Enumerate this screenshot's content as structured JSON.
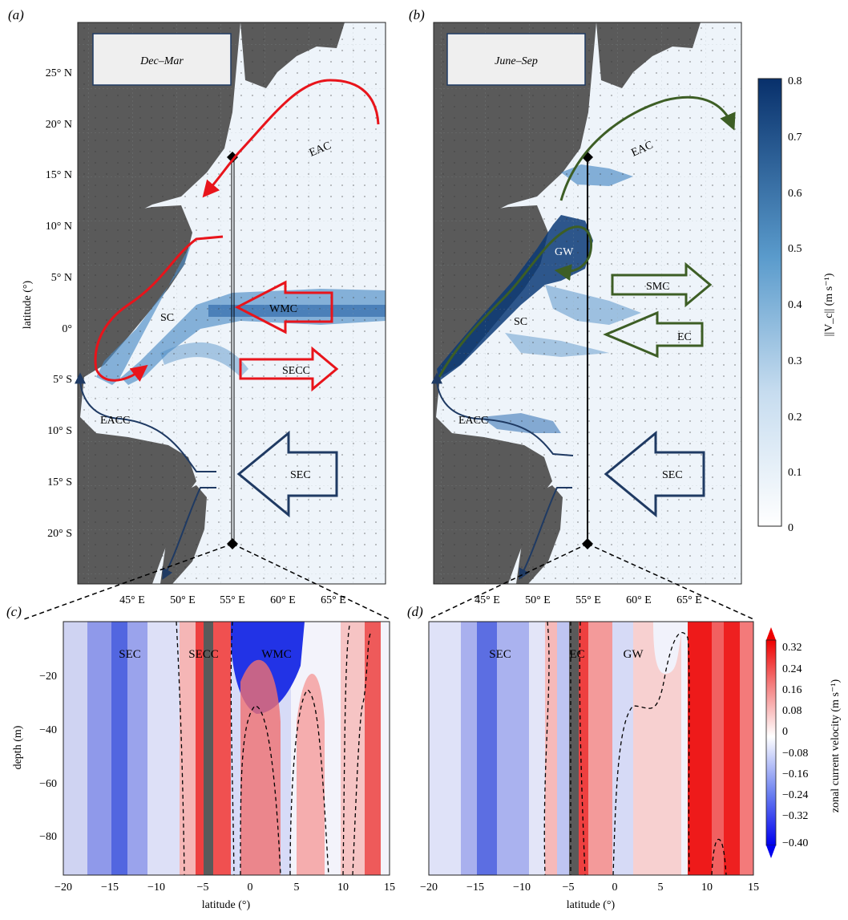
{
  "panels": {
    "a": {
      "letter": "(a)",
      "season": "Dec–Mar"
    },
    "b": {
      "letter": "(b)",
      "season": "June–Sep"
    },
    "c": {
      "letter": "(c)"
    },
    "d": {
      "letter": "(d)"
    }
  },
  "map_axes": {
    "ylabel": "latitude (°)",
    "lat_ticks": [
      "25° N",
      "20° N",
      "15° N",
      "10° N",
      "5° N",
      "0°",
      "5° S",
      "10° S",
      "15° S",
      "20° S"
    ],
    "lon_ticks": [
      "45° E",
      "50° E",
      "55° E",
      "60° E",
      "65° E"
    ]
  },
  "currents_a": {
    "eac": "EAC",
    "sc": "SC",
    "wmc": "WMC",
    "secc": "SECC",
    "eacc": "EACC",
    "sec": "SEC"
  },
  "currents_b": {
    "eac": "EAC",
    "gw": "GW",
    "smc": "SMC",
    "sc": "SC",
    "ec": "EC",
    "eacc": "EACC",
    "sec": "SEC"
  },
  "colorbar_speed": {
    "label": "||V_c|| (m s⁻¹)",
    "ticks": [
      "0.8",
      "0.7",
      "0.6",
      "0.5",
      "0.4",
      "0.3",
      "0.2",
      "0.1",
      "0"
    ]
  },
  "colorbar_zonal": {
    "label": "zonal current velocity (m s⁻¹)",
    "ticks": [
      "0.32",
      "0.24",
      "0.16",
      "0.08",
      "0",
      "−0.08",
      "−0.16",
      "−0.24",
      "−0.32",
      "−0.40"
    ]
  },
  "sections": {
    "ylabel": "depth (m)",
    "xlabel": "latitude (°)",
    "depth_ticks": [
      "−20",
      "−40",
      "−60",
      "−80"
    ],
    "lat_ticks": [
      "−20",
      "−15",
      "−10",
      "−5",
      "0",
      "5",
      "10",
      "15"
    ],
    "labels_c": {
      "sec": "SEC",
      "secc": "SECC",
      "wmc": "WMC"
    },
    "labels_d": {
      "sec": "SEC",
      "ec": "EC",
      "gw": "GW"
    }
  },
  "colors": {
    "winter_arrows": "#e8141b",
    "summer_arrows": "#3d5e25",
    "sec_arrows": "#1f3a63",
    "land": "#5a5a5a"
  }
}
